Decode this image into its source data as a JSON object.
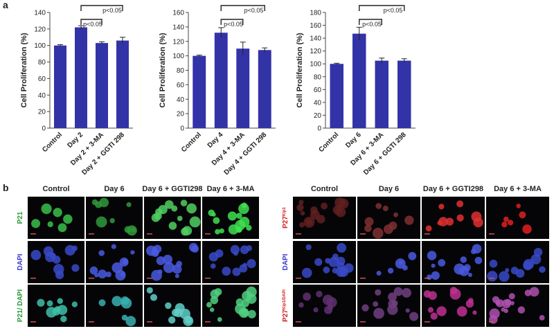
{
  "panel_labels": [
    "a",
    "b"
  ],
  "chart_data": [
    {
      "type": "bar",
      "ylabel": "Cell Proliferation (%)",
      "color": "#3333a8",
      "categories": [
        "Control",
        "Day 2",
        "Day 2 + 3-MA",
        "Day 2 + GGTI 298"
      ],
      "values": [
        100,
        122,
        103,
        106
      ],
      "errors": [
        1,
        2,
        1.5,
        4
      ],
      "ylim": [
        0,
        140
      ],
      "yticks": [
        0,
        20,
        40,
        60,
        80,
        100,
        120,
        140
      ],
      "annotations": [
        "p<0.05",
        "p<0.05"
      ]
    },
    {
      "type": "bar",
      "ylabel": "Cell Proliferation (%)",
      "color": "#3333a8",
      "categories": [
        "Control",
        "Day 4",
        "Day 4 + 3-MA",
        "Day 4 + GGTI 298"
      ],
      "values": [
        100,
        132,
        110,
        108
      ],
      "errors": [
        1,
        7,
        9,
        3
      ],
      "ylim": [
        0,
        160
      ],
      "yticks": [
        0,
        20,
        40,
        60,
        80,
        100,
        120,
        140,
        160
      ],
      "annotations": [
        "p<0.05",
        "p<0.05"
      ]
    },
    {
      "type": "bar",
      "ylabel": "Cell Proliferation (%)",
      "color": "#3333a8",
      "categories": [
        "Control",
        "Day 6",
        "Day 6 + 3-MA",
        "Day 6 + GGTI 298"
      ],
      "values": [
        100,
        147,
        105,
        105
      ],
      "errors": [
        1,
        10,
        4,
        3
      ],
      "ylim": [
        0,
        180
      ],
      "yticks": [
        0,
        20,
        40,
        60,
        80,
        100,
        120,
        140,
        160,
        180
      ],
      "annotations": [
        "p<0.05",
        "p<0.05"
      ]
    }
  ],
  "micrographs": [
    {
      "columns": [
        "Control",
        "Day 6",
        "Day 6 + GGTI298",
        "Day 6 + 3-MA"
      ],
      "rows": [
        {
          "text": "P21",
          "sup": ""
        },
        {
          "text": "DAPI",
          "sup": ""
        },
        {
          "text": "P21/ DAPI",
          "sup": ""
        }
      ]
    },
    {
      "columns": [
        "Control",
        "Day 6",
        "Day 6 + GGTI298",
        "Day 6 + 3-MA"
      ],
      "rows": [
        {
          "text": "P27",
          "sup": "Kip1"
        },
        {
          "text": "DAPI",
          "sup": ""
        },
        {
          "text": "P27",
          "sup": "Kip1/DAPI"
        }
      ]
    }
  ]
}
